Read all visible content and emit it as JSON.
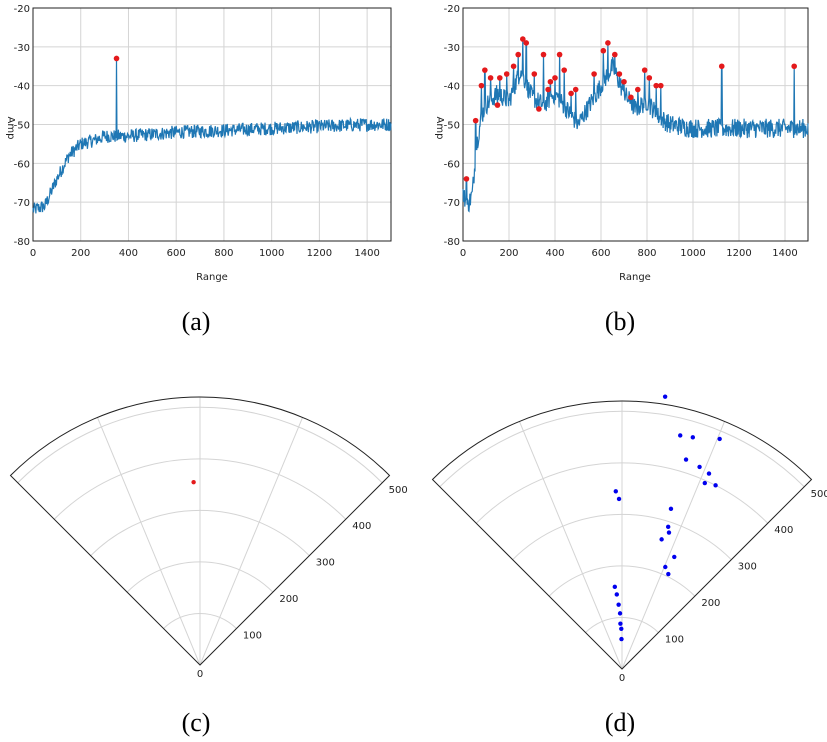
{
  "chart_data": [
    {
      "panel": "(a)",
      "type": "line",
      "xlabel": "Range",
      "ylabel": "Amp",
      "xlim": [
        0,
        1500
      ],
      "ylim": [
        -80,
        -20
      ],
      "x_ticks": [
        "0",
        "200",
        "400",
        "600",
        "800",
        "1000",
        "1200",
        "1400"
      ],
      "y_ticks": [
        "-20",
        "-30",
        "-40",
        "-50",
        "-60",
        "-70",
        "-80"
      ],
      "series_color": "#1f77b4",
      "envelope": [
        [
          0,
          -72
        ],
        [
          50,
          -71
        ],
        [
          100,
          -64
        ],
        [
          150,
          -58
        ],
        [
          200,
          -55
        ],
        [
          260,
          -54
        ],
        [
          300,
          -53
        ],
        [
          400,
          -53
        ],
        [
          500,
          -52.5
        ],
        [
          600,
          -52
        ],
        [
          800,
          -51.5
        ],
        [
          1000,
          -51
        ],
        [
          1200,
          -50.5
        ],
        [
          1400,
          -50
        ],
        [
          1500,
          -50
        ]
      ],
      "spikes": [
        [
          350,
          -33
        ]
      ],
      "peaks": [
        [
          350,
          -33
        ]
      ],
      "peak_color": "#e41a1c"
    },
    {
      "panel": "(b)",
      "type": "line",
      "xlabel": "Range",
      "ylabel": "Amp",
      "xlim": [
        0,
        1500
      ],
      "ylim": [
        -80,
        -20
      ],
      "x_ticks": [
        "0",
        "200",
        "400",
        "600",
        "800",
        "1000",
        "1200",
        "1400"
      ],
      "y_ticks": [
        "-20",
        "-30",
        "-40",
        "-50",
        "-60",
        "-70",
        "-80"
      ],
      "series_color": "#1f77b4",
      "envelope": [
        [
          0,
          -68
        ],
        [
          20,
          -71
        ],
        [
          40,
          -68
        ],
        [
          60,
          -55
        ],
        [
          80,
          -48
        ],
        [
          100,
          -45
        ],
        [
          150,
          -42
        ],
        [
          200,
          -44
        ],
        [
          250,
          -36
        ],
        [
          300,
          -43
        ],
        [
          350,
          -45
        ],
        [
          400,
          -42
        ],
        [
          450,
          -46
        ],
        [
          500,
          -50
        ],
        [
          560,
          -44
        ],
        [
          600,
          -40
        ],
        [
          650,
          -35
        ],
        [
          700,
          -42
        ],
        [
          750,
          -46
        ],
        [
          800,
          -44
        ],
        [
          850,
          -48
        ],
        [
          900,
          -50
        ],
        [
          1000,
          -51
        ],
        [
          1200,
          -51
        ],
        [
          1400,
          -51
        ],
        [
          1500,
          -51
        ]
      ],
      "spikes": [
        [
          1125,
          -35
        ],
        [
          1440,
          -35
        ]
      ],
      "peaks": [
        [
          15,
          -64
        ],
        [
          55,
          -49
        ],
        [
          80,
          -40
        ],
        [
          95,
          -36
        ],
        [
          120,
          -38
        ],
        [
          150,
          -45
        ],
        [
          160,
          -38
        ],
        [
          190,
          -37
        ],
        [
          220,
          -35
        ],
        [
          240,
          -32
        ],
        [
          260,
          -28
        ],
        [
          275,
          -29
        ],
        [
          310,
          -37
        ],
        [
          330,
          -46
        ],
        [
          350,
          -32
        ],
        [
          370,
          -41
        ],
        [
          380,
          -39
        ],
        [
          400,
          -38
        ],
        [
          420,
          -32
        ],
        [
          440,
          -36
        ],
        [
          470,
          -42
        ],
        [
          490,
          -41
        ],
        [
          570,
          -37
        ],
        [
          610,
          -31
        ],
        [
          630,
          -29
        ],
        [
          660,
          -32
        ],
        [
          680,
          -37
        ],
        [
          700,
          -39
        ],
        [
          730,
          -43
        ],
        [
          760,
          -41
        ],
        [
          790,
          -36
        ],
        [
          810,
          -38
        ],
        [
          840,
          -40
        ],
        [
          860,
          -40
        ],
        [
          1125,
          -35
        ],
        [
          1440,
          -35
        ]
      ],
      "peak_color": "#e41a1c"
    },
    {
      "panel": "(c)",
      "type": "scatter",
      "projection": "polar-sector",
      "theta_span_deg": [
        -45,
        45
      ],
      "r_max": 520,
      "r_grid": [
        100,
        200,
        300,
        400,
        500
      ],
      "r_tick_labels": [
        "0",
        "100",
        "200",
        "300",
        "400",
        "500"
      ],
      "points": [
        [
          -2,
          355
        ]
      ],
      "point_color": "#e41a1c"
    },
    {
      "panel": "(d)",
      "type": "scatter",
      "projection": "polar-sector",
      "theta_span_deg": [
        -45,
        45
      ],
      "r_max": 520,
      "r_grid": [
        100,
        200,
        300,
        400,
        500
      ],
      "r_tick_labels": [
        "0",
        "100",
        "200",
        "300",
        "400",
        "500"
      ],
      "points": [
        [
          -1,
          58
        ],
        [
          -1,
          78
        ],
        [
          -2,
          88
        ],
        [
          -2,
          108
        ],
        [
          -3,
          125
        ],
        [
          -4,
          145
        ],
        [
          -5,
          160
        ],
        [
          -1,
          330
        ],
        [
          -2,
          345
        ],
        [
          9,
          535
        ],
        [
          14,
          467
        ],
        [
          17,
          470
        ],
        [
          23,
          485
        ],
        [
          17,
          425
        ],
        [
          21,
          420
        ],
        [
          24,
          415
        ],
        [
          24,
          395
        ],
        [
          27,
          400
        ],
        [
          17,
          325
        ],
        [
          18,
          290
        ],
        [
          19,
          280
        ],
        [
          17,
          263
        ],
        [
          25,
          240
        ],
        [
          23,
          215
        ],
        [
          26,
          205
        ]
      ],
      "point_color": "#0000ee"
    }
  ],
  "captions": [
    "(a)",
    "(b)",
    "(c)",
    "(d)"
  ]
}
